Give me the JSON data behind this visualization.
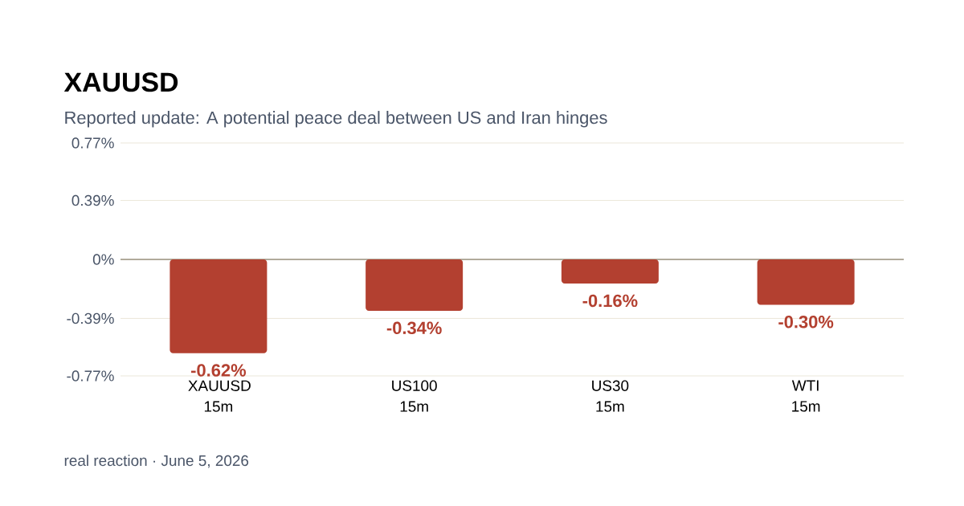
{
  "chart_data": {
    "type": "bar",
    "title": "XAUUSD",
    "subtitle": "Reported update: A potential peace deal between US and Iran hinges",
    "categories": [
      "XAUUSD 15m",
      "US100 15m",
      "US30 15m",
      "WTI 15m"
    ],
    "values": [
      -0.62,
      -0.34,
      -0.16,
      -0.3
    ],
    "value_labels": [
      "-0.62%",
      "-0.34%",
      "-0.16%",
      "-0.30%"
    ],
    "color": "#b34030",
    "ylim": [
      -0.77,
      0.77
    ],
    "yticks": [
      {
        "value": 0.77,
        "label": "0.77%"
      },
      {
        "value": 0.39,
        "label": "0.39%"
      },
      {
        "value": 0,
        "label": "0%"
      },
      {
        "value": -0.39,
        "label": "-0.39%"
      },
      {
        "value": -0.77,
        "label": "-0.77%"
      }
    ],
    "grid": "y",
    "ref_lines": [
      {
        "axis": "y",
        "value": 0,
        "color": "#9a9280"
      }
    ],
    "annotations": [
      "real reaction · June 5, 2026"
    ]
  }
}
